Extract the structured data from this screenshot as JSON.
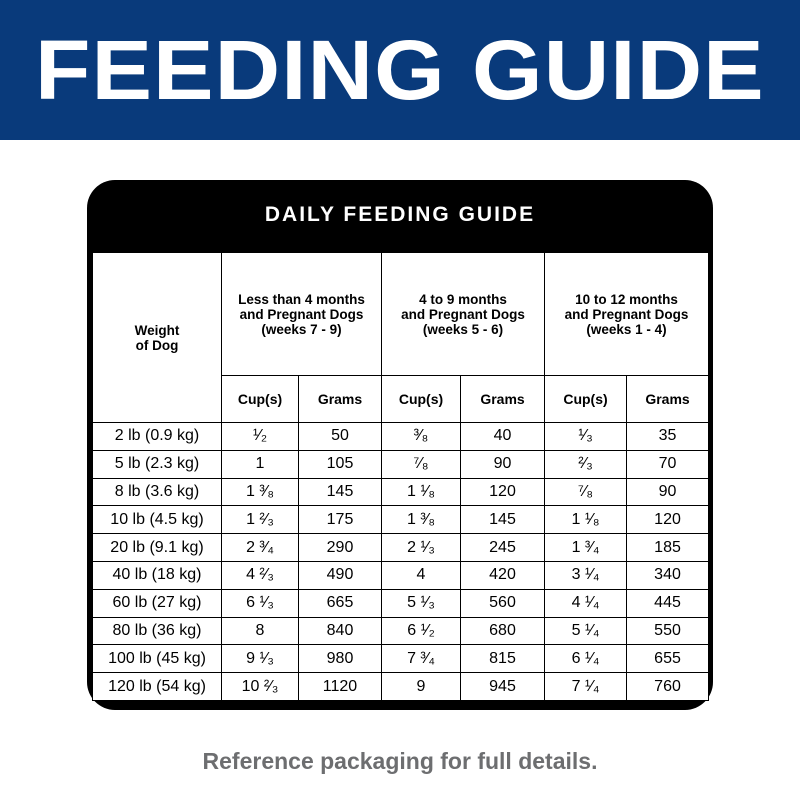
{
  "header": {
    "title": "FEEDING GUIDE"
  },
  "table": {
    "title": "DAILY FEEDING GUIDE",
    "weight_header": [
      "Weight",
      "of Dog"
    ],
    "groups": [
      [
        "Less than 4 months",
        "and Pregnant Dogs",
        "(weeks 7 - 9)"
      ],
      [
        "4 to 9 months",
        "and Pregnant Dogs",
        "(weeks 5 - 6)"
      ],
      [
        "10 to 12 months",
        "and Pregnant Dogs",
        "(weeks 1 - 4)"
      ]
    ],
    "subheaders": [
      "Cup(s)",
      "Grams"
    ],
    "rows": [
      [
        "2 lb (0.9 kg)",
        "¹⁄₂",
        50,
        "³⁄₈",
        40,
        "¹⁄₃",
        35
      ],
      [
        "5 lb (2.3 kg)",
        "1",
        105,
        "⁷⁄₈",
        90,
        "²⁄₃",
        70
      ],
      [
        "8 lb (3.6 kg)",
        "1 ³⁄₈",
        145,
        "1 ¹⁄₈",
        120,
        "⁷⁄₈",
        90
      ],
      [
        "10 lb (4.5 kg)",
        "1 ²⁄₃",
        175,
        "1 ³⁄₈",
        145,
        "1 ¹⁄₈",
        120
      ],
      [
        "20 lb (9.1 kg)",
        "2 ³⁄₄",
        290,
        "2 ¹⁄₃",
        245,
        "1 ³⁄₄",
        185
      ],
      [
        "40 lb (18 kg)",
        "4 ²⁄₃",
        490,
        "4",
        420,
        "3 ¹⁄₄",
        340
      ],
      [
        "60 lb (27 kg)",
        "6 ¹⁄₃",
        665,
        "5 ¹⁄₃",
        560,
        "4 ¹⁄₄",
        445
      ],
      [
        "80 lb (36 kg)",
        "8",
        840,
        "6 ¹⁄₂",
        680,
        "5 ¹⁄₄",
        550
      ],
      [
        "100 lb (45 kg)",
        "9 ¹⁄₃",
        980,
        "7 ³⁄₄",
        815,
        "6 ¹⁄₄",
        655
      ],
      [
        "120 lb (54 kg)",
        "10 ²⁄₃",
        1120,
        "9",
        945,
        "7 ¹⁄₄",
        760
      ]
    ]
  },
  "footer": {
    "note": "Reference packaging for full details."
  }
}
